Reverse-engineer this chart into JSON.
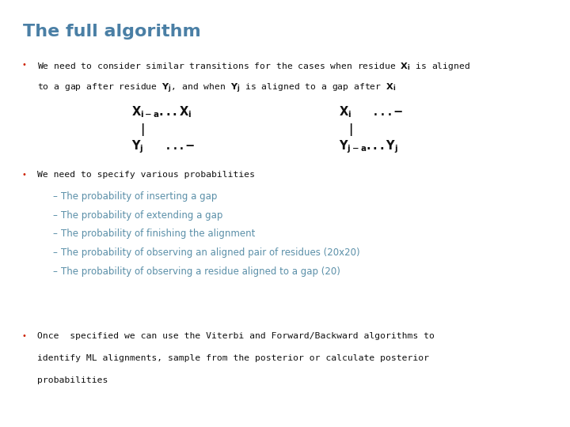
{
  "title": "The full algorithm",
  "title_color": "#4a7fa5",
  "title_fontsize": 16,
  "bg_color": "#ffffff",
  "bullet_color": "#cc2200",
  "text_color": "#111111",
  "subtext_color": "#5a8fa8",
  "mono_color": "#111111",
  "bullet2_text": "We need to specify various probabilities",
  "sub_bullets": [
    "The probability of inserting a gap",
    "The probability of extending a gap",
    "The probability of finishing the alignment",
    "The probability of observing an aligned pair of residues (20x20)",
    "The probability of observing a residue aligned to a gap (20)"
  ],
  "bullet3_line1": "Once  specified we can use the Viterbi and Forward/Backward algorithms to",
  "bullet3_line2": "identify ML alignments, sample from the posterior or calculate posterior",
  "bullet3_line3": "probabilities"
}
